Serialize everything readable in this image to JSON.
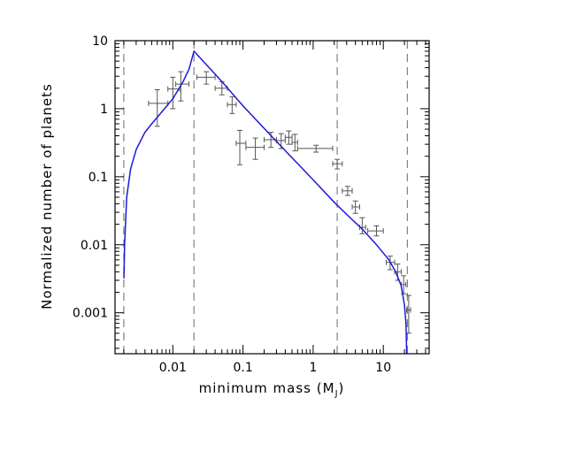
{
  "chart_data": {
    "type": "scatter",
    "title": "",
    "xlabel": "minimum mass (M",
    "xlabel_sub": "J",
    "xlabel_close": ")",
    "ylabel": "Normalized number of planets",
    "xscale": "log",
    "yscale": "log",
    "xlim": [
      0.0015,
      45
    ],
    "ylim": [
      0.00025,
      10
    ],
    "x_ticks": [
      {
        "value": 0.01,
        "label": "0.01"
      },
      {
        "value": 0.1,
        "label": "0.1"
      },
      {
        "value": 1,
        "label": "1"
      },
      {
        "value": 10,
        "label": "10"
      }
    ],
    "y_ticks": [
      {
        "value": 0.001,
        "label": "0.001"
      },
      {
        "value": 0.01,
        "label": "0.01"
      },
      {
        "value": 0.1,
        "label": "0.1"
      },
      {
        "value": 1,
        "label": "1"
      },
      {
        "value": 10,
        "label": "10"
      }
    ],
    "vertical_dashed_lines": [
      0.002,
      0.02,
      2.2,
      22
    ],
    "model_curve": {
      "color": "#1a1adb",
      "points": [
        [
          0.00201,
          0.0032
        ],
        [
          0.00205,
          0.01
        ],
        [
          0.0022,
          0.05
        ],
        [
          0.0025,
          0.13
        ],
        [
          0.003,
          0.25
        ],
        [
          0.004,
          0.45
        ],
        [
          0.005,
          0.6
        ],
        [
          0.007,
          0.9
        ],
        [
          0.01,
          1.4
        ],
        [
          0.014,
          2.5
        ],
        [
          0.017,
          3.8
        ],
        [
          0.02,
          7.0
        ],
        [
          0.05,
          2.5
        ],
        [
          0.1,
          1.1
        ],
        [
          0.3,
          0.33
        ],
        [
          1,
          0.09
        ],
        [
          2,
          0.042
        ],
        [
          3,
          0.028
        ],
        [
          5,
          0.017
        ],
        [
          8,
          0.01
        ],
        [
          12,
          0.006
        ],
        [
          15,
          0.004
        ],
        [
          18,
          0.0025
        ],
        [
          20,
          0.0013
        ],
        [
          21,
          0.0007
        ],
        [
          21.5,
          0.00025
        ]
      ]
    },
    "data_points": [
      {
        "x": 0.006,
        "x_lo": 0.0045,
        "x_hi": 0.0085,
        "y": 1.2,
        "y_lo": 0.55,
        "y_hi": 1.9
      },
      {
        "x": 0.01,
        "x_lo": 0.0085,
        "x_hi": 0.0125,
        "y": 1.95,
        "y_lo": 1.0,
        "y_hi": 2.9
      },
      {
        "x": 0.013,
        "x_lo": 0.011,
        "x_hi": 0.017,
        "y": 2.3,
        "y_lo": 1.3,
        "y_hi": 3.5
      },
      {
        "x": 0.03,
        "x_lo": 0.022,
        "x_hi": 0.04,
        "y": 2.9,
        "y_lo": 2.3,
        "y_hi": 3.5
      },
      {
        "x": 0.05,
        "x_lo": 0.04,
        "x_hi": 0.06,
        "y": 2.0,
        "y_lo": 1.6,
        "y_hi": 2.5
      },
      {
        "x": 0.07,
        "x_lo": 0.06,
        "x_hi": 0.08,
        "y": 1.15,
        "y_lo": 0.85,
        "y_hi": 1.5
      },
      {
        "x": 0.09,
        "x_lo": 0.08,
        "x_hi": 0.11,
        "y": 0.31,
        "y_lo": 0.15,
        "y_hi": 0.48
      },
      {
        "x": 0.15,
        "x_lo": 0.11,
        "x_hi": 0.2,
        "y": 0.27,
        "y_lo": 0.18,
        "y_hi": 0.37
      },
      {
        "x": 0.25,
        "x_lo": 0.2,
        "x_hi": 0.3,
        "y": 0.35,
        "y_lo": 0.27,
        "y_hi": 0.45
      },
      {
        "x": 0.35,
        "x_lo": 0.3,
        "x_hi": 0.4,
        "y": 0.34,
        "y_lo": 0.26,
        "y_hi": 0.43
      },
      {
        "x": 0.45,
        "x_lo": 0.4,
        "x_hi": 0.5,
        "y": 0.38,
        "y_lo": 0.3,
        "y_hi": 0.47
      },
      {
        "x": 0.55,
        "x_lo": 0.5,
        "x_hi": 0.6,
        "y": 0.32,
        "y_lo": 0.24,
        "y_hi": 0.42
      },
      {
        "x": 1.1,
        "x_lo": 0.6,
        "x_hi": 1.9,
        "y": 0.26,
        "y_lo": 0.23,
        "y_hi": 0.29
      },
      {
        "x": 2.2,
        "x_lo": 1.9,
        "x_hi": 2.6,
        "y": 0.155,
        "y_lo": 0.13,
        "y_hi": 0.18
      },
      {
        "x": 3.1,
        "x_lo": 2.6,
        "x_hi": 3.6,
        "y": 0.062,
        "y_lo": 0.053,
        "y_hi": 0.072
      },
      {
        "x": 4.0,
        "x_lo": 3.6,
        "x_hi": 4.6,
        "y": 0.036,
        "y_lo": 0.029,
        "y_hi": 0.044
      },
      {
        "x": 5.0,
        "x_lo": 4.6,
        "x_hi": 5.6,
        "y": 0.018,
        "y_lo": 0.0145,
        "y_hi": 0.025
      },
      {
        "x": 8.0,
        "x_lo": 6.0,
        "x_hi": 10.0,
        "y": 0.016,
        "y_lo": 0.0135,
        "y_hi": 0.019
      },
      {
        "x": 12.5,
        "x_lo": 11.0,
        "x_hi": 14.5,
        "y": 0.0055,
        "y_lo": 0.0043,
        "y_hi": 0.0068
      },
      {
        "x": 16.0,
        "x_lo": 14.5,
        "x_hi": 18.0,
        "y": 0.004,
        "y_lo": 0.003,
        "y_hi": 0.0052
      },
      {
        "x": 19.5,
        "x_lo": 18.0,
        "x_hi": 21.0,
        "y": 0.0026,
        "y_lo": 0.0019,
        "y_hi": 0.0035
      },
      {
        "x": 23.0,
        "x_lo": 21.5,
        "x_hi": 24.5,
        "y": 0.0011,
        "y_lo": 0.0005,
        "y_hi": 0.0018
      }
    ]
  }
}
